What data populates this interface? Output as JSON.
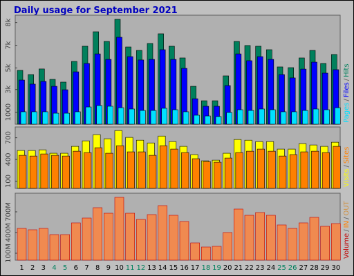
{
  "chart_data": [
    {
      "type": "bar",
      "title": "Daily usage for September 2021",
      "ylim": [
        0,
        9000
      ],
      "yticks": [
        {
          "value": 8500,
          "label": "8k"
        },
        {
          "value": 6600,
          "label": "7k"
        },
        {
          "value": 4700,
          "label": "5k"
        },
        {
          "value": 2900,
          "label": "3k"
        },
        1000
      ],
      "legend_separator": "/",
      "legend_reverse": true,
      "series": [
        {
          "name": "Hits",
          "color": "#00805c",
          "values": [
            4500,
            4150,
            4620,
            3750,
            3520,
            5250,
            6520,
            7730,
            6920,
            8770,
            6460,
            6170,
            6750,
            7560,
            6520,
            5540,
            3170,
            1960,
            1960,
            4040,
            6920,
            6580,
            6520,
            6230,
            4790,
            4730,
            5540,
            6170,
            5080,
            5830
          ]
        },
        {
          "name": "Files",
          "color": "#0000ff",
          "values": [
            3690,
            3350,
            3580,
            3170,
            2880,
            4380,
            5080,
            5880,
            5420,
            7270,
            5650,
            5370,
            5420,
            6230,
            5420,
            4670,
            2130,
            1500,
            1500,
            3230,
            5880,
            5310,
            5650,
            5420,
            4150,
            3870,
            4610,
            5190,
            4270,
            4560
          ]
        },
        {
          "name": "Pages",
          "color": "#00e0ff",
          "values": [
            1040,
            1040,
            1040,
            920,
            920,
            1040,
            1440,
            1560,
            1500,
            1380,
            1270,
            1150,
            1150,
            1330,
            1210,
            1040,
            750,
            690,
            640,
            980,
            1210,
            1150,
            1270,
            1210,
            1040,
            1040,
            1150,
            1270,
            1210,
            1380
          ]
        }
      ]
    },
    {
      "type": "bar",
      "ylim": [
        0,
        830
      ],
      "yticks": [
        700,
        400,
        100
      ],
      "legend_separator": "/",
      "legend_reverse": false,
      "series": [
        {
          "name": "Visits",
          "color": "#ffff00",
          "values": [
            524,
            524,
            533,
            486,
            486,
            581,
            657,
            743,
            686,
            800,
            705,
            666,
            628,
            723,
            647,
            581,
            467,
            381,
            390,
            486,
            676,
            666,
            647,
            647,
            543,
            543,
            619,
            600,
            581,
            638
          ]
        },
        {
          "name": "Sites",
          "color": "#ff8000",
          "values": [
            457,
            447,
            476,
            457,
            447,
            514,
            495,
            562,
            486,
            590,
            505,
            505,
            457,
            590,
            543,
            495,
            410,
            371,
            362,
            419,
            495,
            514,
            543,
            514,
            447,
            467,
            505,
            514,
            495,
            581
          ]
        }
      ]
    },
    {
      "type": "bar",
      "ylim": [
        0,
        950
      ],
      "yticks": [
        {
          "value": 700,
          "label": "700M"
        },
        {
          "value": 400,
          "label": "400M"
        },
        {
          "value": 100,
          "label": "100M"
        }
      ],
      "legend_separator": "/",
      "legend_reverse": false,
      "legend_extra": [
        {
          "text": "IN",
          "color": "#ff8000"
        },
        {
          "text": "OUT",
          "color": "#d09040"
        }
      ],
      "categories": [
        "1",
        "2",
        "3",
        "4",
        "5",
        "6",
        "7",
        "8",
        "9",
        "10",
        "11",
        "12",
        "13",
        "14",
        "15",
        "16",
        "17",
        "18",
        "19",
        "20",
        "21",
        "22",
        "23",
        "24",
        "25",
        "26",
        "27",
        "28",
        "29",
        "30"
      ],
      "category_colors": [
        "#000",
        "#000",
        "#000",
        "#00805c",
        "#00805c",
        "#000",
        "#000",
        "#000",
        "#000",
        "#000",
        "#00805c",
        "#00805c",
        "#000",
        "#000",
        "#000",
        "#000",
        "#000",
        "#00805c",
        "#00805c",
        "#000",
        "#000",
        "#000",
        "#000",
        "#000",
        "#00805c",
        "#00805c",
        "#000",
        "#000",
        "#000",
        "#000"
      ],
      "series": [
        {
          "name": "Volume",
          "color": "#c00000",
          "fill": "#f08a50",
          "values": [
            460,
            440,
            460,
            370,
            370,
            540,
            610,
            760,
            680,
            910,
            680,
            590,
            660,
            790,
            650,
            560,
            250,
            190,
            200,
            400,
            740,
            650,
            690,
            650,
            510,
            460,
            540,
            620,
            490,
            530
          ]
        }
      ]
    }
  ]
}
